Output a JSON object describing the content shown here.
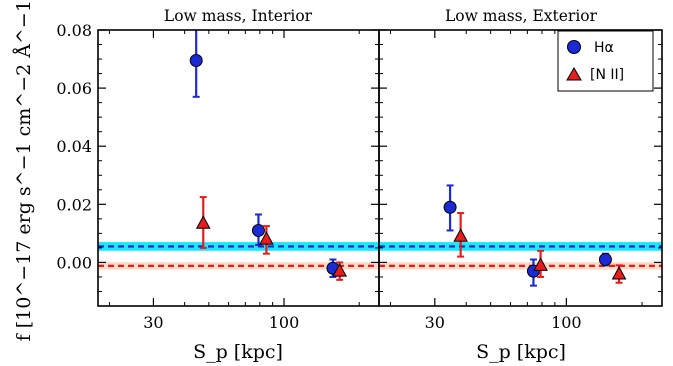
{
  "chart_data": [
    {
      "type": "scatter",
      "title": "Low mass,  Interior",
      "xlabel": "S_p [kpc]",
      "ylabel": "f [10^−17 erg s^−1 cm^−2 Å^−1]",
      "xscale": "log",
      "xlim": [
        18,
        240
      ],
      "ylim": [
        -0.015,
        0.08
      ],
      "xticks": [
        30,
        100
      ],
      "xtick_labels": [
        "30",
        "100"
      ],
      "yticks": [
        0.0,
        0.02,
        0.04,
        0.06,
        0.08
      ],
      "ytick_labels": [
        "0.00",
        "0.02",
        "0.04",
        "0.06",
        "0.08"
      ],
      "legend_position": "none",
      "bands": [
        {
          "series": "Hα",
          "center": 0.0055,
          "low": 0.004,
          "high": 0.007,
          "fill": "#00e5ff",
          "line": "#1a1ad6"
        },
        {
          "series": "[N II]",
          "center": -0.0012,
          "low": -0.0025,
          "high": 0.0001,
          "fill": "#fbd5c0",
          "line": "#e81c1c"
        }
      ],
      "series": [
        {
          "name": "Hα",
          "marker": "circle",
          "color": "#1a2bd6",
          "x": [
            44.5,
            79,
            157
          ],
          "y": [
            0.0695,
            0.011,
            -0.002
          ],
          "yerr": [
            [
              0.0125,
              0.012
            ],
            [
              0.005,
              0.0055
            ],
            [
              0.003,
              0.003
            ]
          ]
        },
        {
          "name": "[N II]",
          "marker": "triangle",
          "color": "#e81c1c",
          "x": [
            47.5,
            85,
            167
          ],
          "y": [
            0.0135,
            0.008,
            -0.003
          ],
          "yerr": [
            [
              0.0085,
              0.009
            ],
            [
              0.005,
              0.0045
            ],
            [
              0.003,
              0.003
            ]
          ]
        }
      ]
    },
    {
      "type": "scatter",
      "title": "Low mass,  Exterior",
      "xlabel": "S_p [kpc]",
      "xscale": "log",
      "xlim": [
        18,
        240
      ],
      "ylim": [
        -0.015,
        0.08
      ],
      "xticks": [
        30,
        100
      ],
      "xtick_labels": [
        "30",
        "100"
      ],
      "legend_position": "top-right",
      "bands": [
        {
          "series": "Hα",
          "center": 0.0055,
          "low": 0.004,
          "high": 0.007,
          "fill": "#00e5ff",
          "line": "#1a1ad6"
        },
        {
          "series": "[N II]",
          "center": -0.0012,
          "low": -0.0025,
          "high": 0.0001,
          "fill": "#fbd5c0",
          "line": "#e81c1c"
        }
      ],
      "series": [
        {
          "name": "Hα",
          "marker": "circle",
          "color": "#1a2bd6",
          "x": [
            34.5,
            74,
            143
          ],
          "y": [
            0.019,
            -0.003,
            0.001
          ],
          "yerr": [
            [
              0.008,
              0.0075
            ],
            [
              0.005,
              0.004
            ],
            [
              0.002,
              0.002
            ]
          ]
        },
        {
          "name": "[N II]",
          "marker": "triangle",
          "color": "#e81c1c",
          "x": [
            38,
            79,
            162
          ],
          "y": [
            0.009,
            -0.001,
            -0.004
          ],
          "yerr": [
            [
              0.007,
              0.008
            ],
            [
              0.004,
              0.005
            ],
            [
              0.003,
              0.003
            ]
          ]
        }
      ]
    }
  ],
  "legend": [
    {
      "label": "Hα",
      "marker": "circle",
      "color": "#1a2bd6"
    },
    {
      "label": "[N II]",
      "marker": "triangle",
      "color": "#e81c1c"
    }
  ]
}
